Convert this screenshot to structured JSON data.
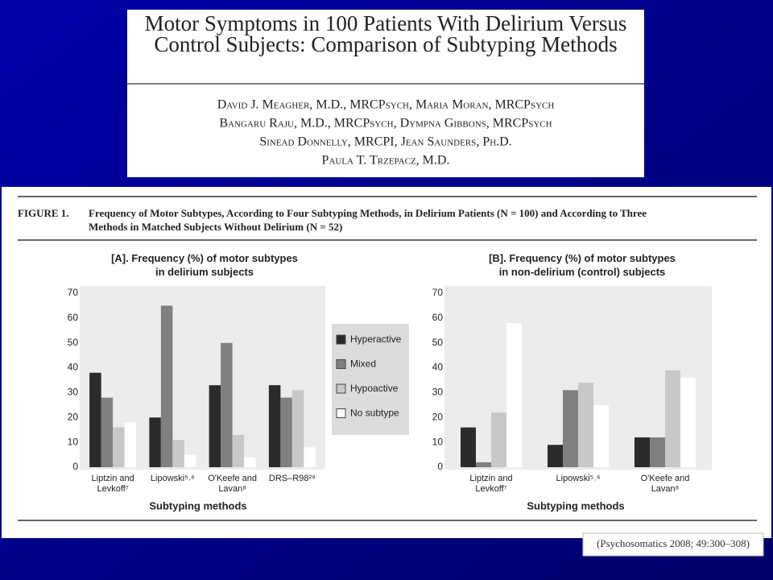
{
  "header": {
    "title": "Motor Symptoms in 100 Patients With Delirium Versus\nControl Subjects: Comparison of Subtyping Methods",
    "authors": [
      "David J. Meagher, M.D., MRCPsych, Maria Moran, MRCPsych",
      "Bangaru Raju, M.D., MRCPsych, Dympna Gibbons, MRCPsych",
      "Sinead Donnelly, MRCPI, Jean Saunders, Ph.D.",
      "Paula T. Trzepacz, M.D."
    ]
  },
  "figure": {
    "label": "FIGURE 1.",
    "caption": "Frequency of Motor Subtypes, According to Four Subtyping Methods, in Delirium Patients (N = 100) and According to Three\nMethods in Matched Subjects Without Delirium (N = 52)"
  },
  "citation": "(Psychosomatics 2008; 49:300–308)",
  "chart_data": [
    {
      "type": "bar",
      "title": "[A]. Frequency (%) of motor subtypes\nin delirium subjects",
      "x_label": "Subtyping methods",
      "categories": [
        "Liptzin and\nLevkoff⁷",
        "Lipowski⁵˒⁶",
        "O'Keefe and\nLavan⁸",
        "DRS–R98²⁹"
      ],
      "series": [
        {
          "name": "Hyperactive",
          "color": "#2b2b2b",
          "values": [
            38,
            20,
            33,
            33
          ]
        },
        {
          "name": "Mixed",
          "color": "#808080",
          "values": [
            28,
            65,
            50,
            28
          ]
        },
        {
          "name": "Hypoactive",
          "color": "#c8c8c8",
          "values": [
            16,
            11,
            13,
            31
          ]
        },
        {
          "name": "No subtype",
          "color": "#ffffff",
          "values": [
            18,
            5,
            4,
            8
          ]
        }
      ],
      "ylim": [
        0,
        70
      ],
      "yticks": [
        0,
        10,
        20,
        30,
        40,
        50,
        60,
        70
      ],
      "legend": "right"
    },
    {
      "type": "bar",
      "title": "[B]. Frequency (%) of motor subtypes\nin non-delirium (control) subjects",
      "x_label": "Subtyping methods",
      "categories": [
        "Liptzin and\nLevkoff⁷",
        "Lipowski⁵˒⁶",
        "O'Keefe and\nLavan⁸"
      ],
      "series": [
        {
          "color": "#2b2b2b",
          "values": [
            16,
            9,
            12
          ]
        },
        {
          "color": "#808080",
          "values": [
            2,
            31,
            12
          ]
        },
        {
          "color": "#c8c8c8",
          "values": [
            22,
            34,
            39
          ]
        },
        {
          "color": "#ffffff",
          "values": [
            58,
            25,
            36
          ]
        }
      ],
      "ylim": [
        0,
        70
      ],
      "yticks": [
        0,
        10,
        20,
        30,
        40,
        50,
        60,
        70
      ]
    }
  ]
}
